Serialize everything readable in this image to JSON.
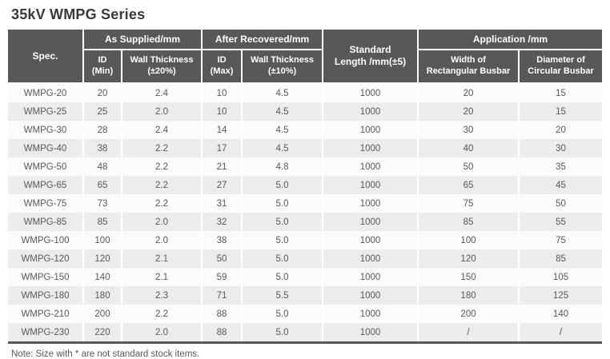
{
  "page": {
    "title": "35kV WMPG Series",
    "note": "Note: Size with * are not standard stock items."
  },
  "colors": {
    "header_background": "#595757",
    "header_text": "#ffffff",
    "row_light": "#fbfbfb",
    "row_gray": "#ececec",
    "body_text": "#595757",
    "title_text": "#3a3a3a",
    "table_bottom_border": "#595757"
  },
  "table": {
    "headers": {
      "spec": "Spec.",
      "as_supplied": "As Supplied/mm",
      "after_recovered": "After Recovered/mm",
      "standard_length": "Standard\nLength /mm(±5)",
      "application": "Application /mm",
      "id_min": "ID\n(Min)",
      "wall_thickness_supplied": "Wall Thickness\n(±20%)",
      "id_max": "ID\n(Max)",
      "wall_thickness_recovered": "Wall Thickness\n(±10%)",
      "width_busbar": "Width of\nRectangular Busbar",
      "diameter_busbar": "Diameter of\nCircular Busbar"
    },
    "rows": [
      {
        "spec": "WMPG-20",
        "id_min": "20",
        "wall_supplied": "2.4",
        "id_max": "10",
        "wall_recovered": "4.5",
        "length": "1000",
        "width_busbar": "20",
        "diameter_busbar": "15"
      },
      {
        "spec": "WMPG-25",
        "id_min": "25",
        "wall_supplied": "2.0",
        "id_max": "10",
        "wall_recovered": "4.5",
        "length": "1000",
        "width_busbar": "20",
        "diameter_busbar": "15"
      },
      {
        "spec": "WMPG-30",
        "id_min": "28",
        "wall_supplied": "2.4",
        "id_max": "14",
        "wall_recovered": "4.5",
        "length": "1000",
        "width_busbar": "30",
        "diameter_busbar": "20"
      },
      {
        "spec": "WMPG-40",
        "id_min": "38",
        "wall_supplied": "2.2",
        "id_max": "17",
        "wall_recovered": "4.5",
        "length": "1000",
        "width_busbar": "40",
        "diameter_busbar": "30"
      },
      {
        "spec": "WMPG-50",
        "id_min": "48",
        "wall_supplied": "2.2",
        "id_max": "21",
        "wall_recovered": "4.8",
        "length": "1000",
        "width_busbar": "50",
        "diameter_busbar": "35"
      },
      {
        "spec": "WMPG-65",
        "id_min": "65",
        "wall_supplied": "2.2",
        "id_max": "27",
        "wall_recovered": "5.0",
        "length": "1000",
        "width_busbar": "65",
        "diameter_busbar": "45"
      },
      {
        "spec": "WMPG-75",
        "id_min": "73",
        "wall_supplied": "2.2",
        "id_max": "31",
        "wall_recovered": "5.0",
        "length": "1000",
        "width_busbar": "75",
        "diameter_busbar": "50"
      },
      {
        "spec": "WMPG-85",
        "id_min": "85",
        "wall_supplied": "2.0",
        "id_max": "32",
        "wall_recovered": "5.0",
        "length": "1000",
        "width_busbar": "85",
        "diameter_busbar": "55"
      },
      {
        "spec": "WMPG-100",
        "id_min": "100",
        "wall_supplied": "2.0",
        "id_max": "38",
        "wall_recovered": "5.0",
        "length": "1000",
        "width_busbar": "100",
        "diameter_busbar": "75"
      },
      {
        "spec": "WMPG-120",
        "id_min": "120",
        "wall_supplied": "2.1",
        "id_max": "50",
        "wall_recovered": "5.0",
        "length": "1000",
        "width_busbar": "120",
        "diameter_busbar": "85"
      },
      {
        "spec": "WMPG-150",
        "id_min": "140",
        "wall_supplied": "2.1",
        "id_max": "59",
        "wall_recovered": "5.0",
        "length": "1000",
        "width_busbar": "150",
        "diameter_busbar": "105"
      },
      {
        "spec": "WMPG-180",
        "id_min": "180",
        "wall_supplied": "2.3",
        "id_max": "71",
        "wall_recovered": "5.5",
        "length": "1000",
        "width_busbar": "180",
        "diameter_busbar": "125"
      },
      {
        "spec": "WMPG-210",
        "id_min": "200",
        "wall_supplied": "2.2",
        "id_max": "88",
        "wall_recovered": "5.0",
        "length": "1000",
        "width_busbar": "200",
        "diameter_busbar": "140"
      },
      {
        "spec": "WMPG-230",
        "id_min": "220",
        "wall_supplied": "2.0",
        "id_max": "88",
        "wall_recovered": "5.0",
        "length": "1000",
        "width_busbar": "/",
        "diameter_busbar": "/"
      }
    ]
  }
}
